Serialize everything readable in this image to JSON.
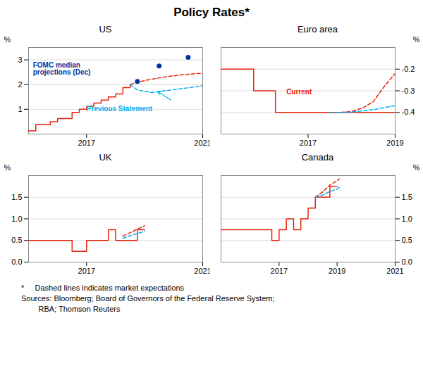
{
  "title": "Policy Rates*",
  "annotations": [
    "*     Dashed lines indicates market expectations",
    "Sources: Bloomberg; Board of Governors of the Federal Reserve System;",
    "        RBA; Thomson Reuters"
  ],
  "chart_data": [
    {
      "type": "line",
      "title": "US",
      "ylabel": "%",
      "grid": true,
      "xlim": [
        2015.0,
        2021.0
      ],
      "xticks": [
        2017,
        2021
      ],
      "ylim": [
        0,
        3.5
      ],
      "yticks": [
        1,
        2,
        3
      ],
      "series": [
        {
          "x": [
            2015.0,
            2015.25,
            2015.25,
            2015.75,
            2015.75,
            2016.0,
            2016.0,
            2016.5,
            2016.5,
            2016.75,
            2016.75,
            2017.0,
            2017.0,
            2017.25,
            2017.25,
            2017.5,
            2017.5,
            2017.75,
            2017.75,
            2018.0,
            2018.0,
            2018.25,
            2018.25,
            2018.5,
            2018.5
          ],
          "values": [
            0.125,
            0.125,
            0.375,
            0.375,
            0.5,
            0.5,
            0.625,
            0.625,
            0.875,
            0.875,
            1.0,
            1.0,
            1.125,
            1.125,
            1.25,
            1.25,
            1.375,
            1.375,
            1.5,
            1.5,
            1.625,
            1.625,
            1.875,
            1.875,
            2.0
          ],
          "color": "#e8220a",
          "line_style": "solid"
        },
        {
          "x": [
            2018.5,
            2018.75,
            2019.25,
            2019.75,
            2020.25,
            2020.75,
            2021.0
          ],
          "values": [
            2.0,
            2.1,
            2.22,
            2.32,
            2.39,
            2.44,
            2.46
          ],
          "color": "#e8220a",
          "line_style": "dashed"
        },
        {
          "x": [
            2018.5,
            2018.75,
            2019.25,
            2019.75,
            2020.25,
            2020.75,
            2021.0
          ],
          "values": [
            2.0,
            1.78,
            1.68,
            1.76,
            1.83,
            1.91,
            1.96
          ],
          "color": "#00b0f0",
          "line_style": "dashed"
        },
        {
          "type": "scatter",
          "marker": "o",
          "x": [
            2018.75,
            2019.5,
            2020.5
          ],
          "values": [
            2.125,
            2.75,
            3.1
          ],
          "color": "#0035a0"
        }
      ],
      "annotations": [
        {
          "text": "FOMC median\nprojections (Dec)",
          "x": 2015.15,
          "y": 2.88,
          "color": "#0035a0"
        },
        {
          "text": "Previous Statement",
          "x": 2017.0,
          "y": 0.92,
          "color": "#00b0f0",
          "arrow": [
            2019.9,
            1.38,
            2019.45,
            1.72
          ]
        }
      ]
    },
    {
      "type": "line",
      "title": "Euro area",
      "ylabel": "%",
      "grid": true,
      "xlim": [
        2015.0,
        2019.0
      ],
      "xticks": [
        2017,
        2019
      ],
      "ylim": [
        -0.5,
        -0.1
      ],
      "yticks": [
        -0.4,
        -0.3,
        -0.2
      ],
      "series": [
        {
          "x": [
            2015.0,
            2015.75,
            2015.75,
            2016.25,
            2016.25,
            2019.0
          ],
          "values": [
            -0.2,
            -0.2,
            -0.3,
            -0.3,
            -0.4,
            -0.4
          ],
          "color": "#e8220a",
          "line_style": "solid"
        },
        {
          "x": [
            2017.5,
            2017.75,
            2018.0,
            2018.25,
            2018.5,
            2018.75,
            2019.0
          ],
          "values": [
            -0.4,
            -0.4,
            -0.395,
            -0.38,
            -0.35,
            -0.28,
            -0.22
          ],
          "color": "#e8220a",
          "line_style": "dashed"
        },
        {
          "x": [
            2017.5,
            2017.75,
            2018.0,
            2018.25,
            2018.5,
            2018.75,
            2019.0
          ],
          "values": [
            -0.4,
            -0.4,
            -0.398,
            -0.393,
            -0.387,
            -0.378,
            -0.368
          ],
          "color": "#00b0f0",
          "line_style": "dashed"
        }
      ],
      "annotations": [
        {
          "text": "Current",
          "x": 2016.5,
          "y": -0.315,
          "color": "#e8220a"
        }
      ]
    },
    {
      "type": "line",
      "title": "UK",
      "ylabel": "%",
      "grid": true,
      "xlim": [
        2015.0,
        2021.0
      ],
      "xticks": [
        2017,
        2021
      ],
      "ylim": [
        0,
        2.0
      ],
      "yticks": [
        {
          "value": 0,
          "label": "0.0"
        },
        0.5,
        {
          "value": 1,
          "label": "1.0"
        },
        1.5
      ],
      "series": [
        {
          "x": [
            2015.0,
            2016.5,
            2016.5,
            2017.0,
            2017.0,
            2017.75,
            2017.75,
            2018.0,
            2018.0,
            2018.75,
            2018.75,
            2019.0
          ],
          "values": [
            0.5,
            0.5,
            0.25,
            0.25,
            0.5,
            0.5,
            0.75,
            0.75,
            0.5,
            0.5,
            0.75,
            0.75
          ],
          "color": "#e8220a",
          "line_style": "solid"
        },
        {
          "x": [
            2018.25,
            2018.5,
            2018.75,
            2019.0
          ],
          "values": [
            0.6,
            0.68,
            0.76,
            0.84
          ],
          "color": "#e8220a",
          "line_style": "dashed"
        },
        {
          "x": [
            2018.25,
            2018.5,
            2018.75,
            2019.0
          ],
          "values": [
            0.55,
            0.61,
            0.66,
            0.71
          ],
          "color": "#00b0f0",
          "line_style": "dashed"
        }
      ]
    },
    {
      "type": "line",
      "title": "Canada",
      "ylabel": "%",
      "grid": true,
      "xlim": [
        2015.0,
        2021.0
      ],
      "xticks": [
        2017,
        2019,
        2021
      ],
      "ylim": [
        0,
        2.0
      ],
      "yticks": [
        {
          "value": 0,
          "label": "0.0"
        },
        0.5,
        {
          "value": 1,
          "label": "1.0"
        },
        1.5
      ],
      "series": [
        {
          "x": [
            2015.0,
            2016.75,
            2016.75,
            2017.0,
            2017.0,
            2017.25,
            2017.25,
            2017.5,
            2017.5,
            2017.75,
            2017.75,
            2018.0,
            2018.0,
            2018.25,
            2018.25,
            2018.75,
            2018.75,
            2019.0
          ],
          "values": [
            0.75,
            0.75,
            0.5,
            0.5,
            0.75,
            0.75,
            1.0,
            1.0,
            0.75,
            0.75,
            1.0,
            1.0,
            1.25,
            1.25,
            1.5,
            1.5,
            1.75,
            1.75
          ],
          "color": "#e8220a",
          "line_style": "solid"
        },
        {
          "x": [
            2018.25,
            2018.5,
            2018.75,
            2019.0,
            2019.08
          ],
          "values": [
            1.5,
            1.62,
            1.78,
            1.88,
            1.92
          ],
          "color": "#e8220a",
          "line_style": "dashed"
        },
        {
          "x": [
            2018.25,
            2018.5,
            2018.75,
            2019.0,
            2019.08
          ],
          "values": [
            1.5,
            1.55,
            1.63,
            1.69,
            1.73
          ],
          "color": "#00b0f0",
          "line_style": "dashed"
        }
      ]
    }
  ]
}
